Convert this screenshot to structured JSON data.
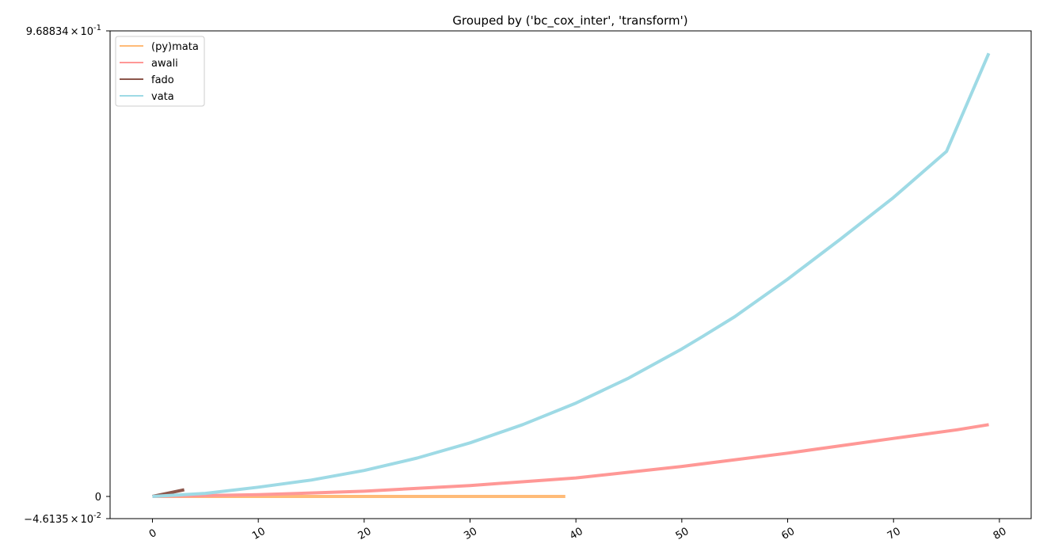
{
  "chart_data": {
    "type": "line",
    "title": "Grouped by ('bc_cox_inter', 'transform')",
    "xlabel": "",
    "ylabel": "",
    "xlim": [
      -4,
      83
    ],
    "ylim": [
      -0.046135,
      0.968834
    ],
    "x_ticks": [
      0,
      10,
      20,
      30,
      40,
      50,
      60,
      70,
      80
    ],
    "y_tick_labels": {
      "top": {
        "mantissa": "9.68834",
        "exponent": "-1",
        "value": 0.968834
      },
      "zero": {
        "label": "0",
        "value": 0
      },
      "bottom": {
        "mantissa": "−4.6135",
        "exponent": "-2",
        "value": -0.046135
      }
    },
    "times_sign": "×",
    "base": "10",
    "legend_position": "upper-left",
    "grid": false,
    "series": [
      {
        "name": "(py)mata",
        "color": "#ffbb78",
        "x": [
          0,
          5,
          10,
          15,
          20,
          25,
          30,
          35,
          39
        ],
        "y": [
          0,
          0,
          0,
          0,
          0,
          0,
          0,
          0,
          0
        ]
      },
      {
        "name": "awali",
        "color": "#ff9896",
        "x": [
          0,
          10,
          20,
          30,
          40,
          50,
          60,
          70,
          76,
          79
        ],
        "y": [
          0,
          0.0037,
          0.0109,
          0.0227,
          0.0386,
          0.0624,
          0.0901,
          0.1207,
          0.1388,
          0.1495
        ]
      },
      {
        "name": "fado",
        "color": "#8c564b",
        "x": [
          0,
          3
        ],
        "y": [
          0,
          0.0138
        ]
      },
      {
        "name": "vata",
        "color": "#9edae5",
        "x": [
          0,
          5,
          10,
          15,
          20,
          25,
          30,
          35,
          40,
          45,
          50,
          52,
          55,
          60,
          65,
          70,
          75,
          79
        ],
        "y": [
          0,
          0.0065,
          0.0192,
          0.0341,
          0.054,
          0.0799,
          0.1115,
          0.1496,
          0.1942,
          0.2465,
          0.3069,
          0.3334,
          0.3741,
          0.4521,
          0.5357,
          0.6222,
          0.7179,
          0.9222
        ]
      }
    ]
  }
}
